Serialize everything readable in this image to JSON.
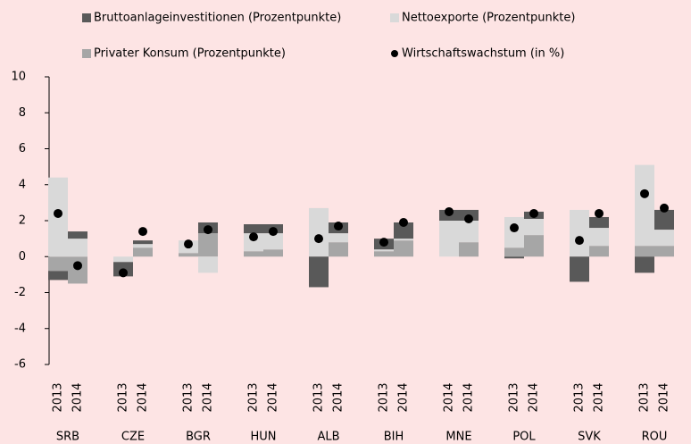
{
  "chart_data": {
    "type": "bar",
    "stacked": true,
    "groups": [
      "SRB",
      "CZE",
      "BGR",
      "HUN",
      "ALB",
      "BIH",
      "MNE",
      "POL",
      "SVK",
      "ROU"
    ],
    "categories": [
      "2013",
      "2014",
      "2013",
      "2014",
      "2013",
      "2014",
      "2013",
      "2014",
      "2013",
      "2014",
      "2013",
      "2014",
      "2014",
      "2014",
      "2013",
      "2014",
      "2013",
      "2014",
      "2013",
      "2014"
    ],
    "series": [
      {
        "name": "Privater Konsum (Prozentpunkte)",
        "color": "#a6a6a6",
        "legend_order": 2,
        "values": [
          -0.8,
          -1.5,
          0,
          0.5,
          0.2,
          1.3,
          0.3,
          0.4,
          0,
          0.8,
          0.3,
          0.9,
          0,
          0.8,
          0.5,
          1.2,
          0,
          0.6,
          0.6,
          0.6
        ]
      },
      {
        "name": "Nettoexporte (Prozentpunkte)",
        "color": "#d9d9d9",
        "legend_order": 1,
        "values": [
          4.4,
          1.0,
          -0.3,
          0.2,
          0.7,
          -0.9,
          1.0,
          0.9,
          2.7,
          0.5,
          0.1,
          0.1,
          2.0,
          1.2,
          1.7,
          0.9,
          2.6,
          1.0,
          4.5,
          0.9
        ]
      },
      {
        "name": "Bruttoanlageinvestitionen (Prozentpunkte)",
        "color": "#595959",
        "legend_order": 0,
        "values": [
          -0.5,
          0.4,
          -0.8,
          0.2,
          0,
          0.6,
          0.5,
          0.5,
          -1.7,
          0.6,
          0.6,
          0.9,
          0.6,
          0.6,
          -0.1,
          0.4,
          -1.4,
          0.6,
          -0.9,
          1.1
        ]
      },
      {
        "name": "Wirtschaftswachstum (in %)",
        "color": "#000000",
        "type": "scatter",
        "legend_order": 3,
        "values": [
          2.4,
          -0.5,
          -0.9,
          1.4,
          0.7,
          1.5,
          1.1,
          1.4,
          1.0,
          1.7,
          0.8,
          1.9,
          2.5,
          2.1,
          1.6,
          2.4,
          0.9,
          2.4,
          3.5,
          2.7
        ]
      }
    ],
    "ylim": [
      -6,
      10
    ],
    "yticks": [
      -6,
      -4,
      -2,
      0,
      2,
      4,
      6,
      8,
      10
    ],
    "grid": false
  }
}
